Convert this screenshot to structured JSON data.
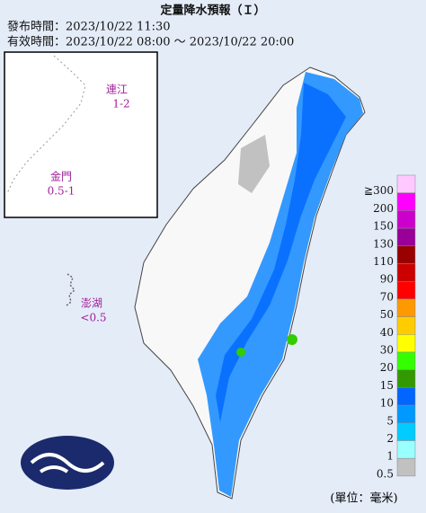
{
  "header": {
    "title": "定量降水預報（Ｉ）",
    "issued": "發布時間：2023/10/22 11:30",
    "valid": "有效時間：2023/10/22 08:00 ～ 2023/10/22 20:00"
  },
  "islands": [
    {
      "name": "連江",
      "amount": "1-2"
    },
    {
      "name": "金門",
      "amount": "0.5-1"
    },
    {
      "name": "澎湖",
      "amount": "<0.5"
    }
  ],
  "legend": {
    "unit": "(單位：毫米)",
    "items": [
      {
        "label": "≧300",
        "color": "#ffc8ff"
      },
      {
        "label": "200",
        "color": "#ff00ff"
      },
      {
        "label": "150",
        "color": "#cc00cc"
      },
      {
        "label": "130",
        "color": "#990099"
      },
      {
        "label": "110",
        "color": "#990000"
      },
      {
        "label": "90",
        "color": "#cc0000"
      },
      {
        "label": "70",
        "color": "#ff0000"
      },
      {
        "label": "50",
        "color": "#ff9900"
      },
      {
        "label": "40",
        "color": "#ffcc00"
      },
      {
        "label": "30",
        "color": "#ffff00"
      },
      {
        "label": "20",
        "color": "#33ff00"
      },
      {
        "label": "15",
        "color": "#339900"
      },
      {
        "label": "10",
        "color": "#0066ff"
      },
      {
        "label": "5",
        "color": "#0099ff"
      },
      {
        "label": "2",
        "color": "#00ccff"
      },
      {
        "label": "1",
        "color": "#99ffff"
      },
      {
        "label": "0.5",
        "color": "#c1c1c1"
      }
    ]
  }
}
